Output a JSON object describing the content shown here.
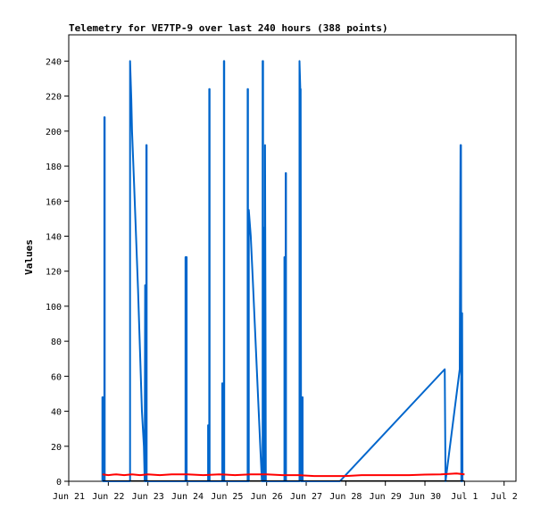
{
  "chart_data": {
    "type": "line",
    "title": "Telemetry for VE7TP-9 over last 240 hours (388 points)",
    "xlabel": "",
    "ylabel": "Values",
    "x_ticks": [
      "Jun 21",
      "Jun 22",
      "Jun 23",
      "Jun 24",
      "Jun 25",
      "Jun 26",
      "Jun 27",
      "Jun 28",
      "Jun 29",
      "Jun 30",
      "Jul 1",
      "Jul 2"
    ],
    "xlim": [
      0,
      11.3
    ],
    "ylim": [
      0,
      255
    ],
    "y_ticks": [
      0,
      20,
      40,
      60,
      80,
      100,
      120,
      140,
      160,
      180,
      200,
      220,
      240
    ],
    "grid": false,
    "series": [
      {
        "color": "#0066cc",
        "points": [
          [
            0.85,
            0
          ],
          [
            0.85,
            48
          ],
          [
            0.87,
            48
          ],
          [
            0.87,
            0
          ],
          [
            0.9,
            0
          ],
          [
            0.9,
            208
          ],
          [
            0.91,
            208
          ],
          [
            0.91,
            0
          ],
          [
            1.55,
            0
          ],
          [
            1.55,
            240
          ],
          [
            1.58,
            218
          ],
          [
            1.6,
            200
          ],
          [
            1.65,
            170
          ],
          [
            1.7,
            140
          ],
          [
            1.75,
            110
          ],
          [
            1.8,
            75
          ],
          [
            1.85,
            40
          ],
          [
            1.9,
            20
          ],
          [
            1.92,
            0
          ],
          [
            1.93,
            112
          ],
          [
            1.93,
            0
          ],
          [
            1.96,
            0
          ],
          [
            1.96,
            192
          ],
          [
            1.97,
            192
          ],
          [
            1.97,
            0
          ],
          [
            2.95,
            0
          ],
          [
            2.95,
            128
          ],
          [
            2.98,
            128
          ],
          [
            2.98,
            0
          ],
          [
            3.52,
            0
          ],
          [
            3.52,
            32
          ],
          [
            3.53,
            0
          ],
          [
            3.55,
            0
          ],
          [
            3.55,
            224
          ],
          [
            3.56,
            224
          ],
          [
            3.56,
            0
          ],
          [
            3.88,
            0
          ],
          [
            3.88,
            56
          ],
          [
            3.89,
            0
          ],
          [
            3.92,
            0
          ],
          [
            3.92,
            240
          ],
          [
            3.93,
            240
          ],
          [
            3.93,
            0
          ],
          [
            4.52,
            0
          ],
          [
            4.52,
            224
          ],
          [
            4.53,
            224
          ],
          [
            4.53,
            0
          ],
          [
            4.55,
            0
          ],
          [
            4.55,
            155
          ],
          [
            4.6,
            140
          ],
          [
            4.65,
            115
          ],
          [
            4.7,
            90
          ],
          [
            4.75,
            65
          ],
          [
            4.8,
            40
          ],
          [
            4.85,
            15
          ],
          [
            4.88,
            0
          ],
          [
            4.9,
            0
          ],
          [
            4.9,
            240
          ],
          [
            4.91,
            240
          ],
          [
            4.91,
            0
          ],
          [
            4.93,
            0
          ],
          [
            4.93,
            145
          ],
          [
            4.94,
            0
          ],
          [
            4.96,
            0
          ],
          [
            4.96,
            192
          ],
          [
            4.97,
            96
          ],
          [
            4.98,
            0
          ],
          [
            5.45,
            0
          ],
          [
            5.45,
            128
          ],
          [
            5.46,
            128
          ],
          [
            5.46,
            0
          ],
          [
            5.48,
            0
          ],
          [
            5.48,
            176
          ],
          [
            5.49,
            176
          ],
          [
            5.49,
            0
          ],
          [
            5.83,
            0
          ],
          [
            5.83,
            240
          ],
          [
            5.85,
            224
          ],
          [
            5.86,
            224
          ],
          [
            5.87,
            0
          ],
          [
            5.9,
            0
          ],
          [
            5.9,
            48
          ],
          [
            5.91,
            48
          ],
          [
            5.91,
            0
          ],
          [
            6.85,
            0
          ],
          [
            9.5,
            64
          ],
          [
            9.52,
            0
          ],
          [
            9.88,
            64
          ],
          [
            9.9,
            192
          ],
          [
            9.91,
            192
          ],
          [
            9.92,
            0
          ],
          [
            9.94,
            0
          ],
          [
            9.94,
            96
          ],
          [
            9.95,
            0
          ]
        ]
      },
      {
        "color": "#ff0000",
        "points": [
          [
            0.85,
            4
          ],
          [
            1.0,
            3.5
          ],
          [
            1.2,
            4
          ],
          [
            1.4,
            3.5
          ],
          [
            1.6,
            4
          ],
          [
            1.8,
            3.5
          ],
          [
            2.0,
            4
          ],
          [
            2.3,
            3.5
          ],
          [
            2.6,
            4
          ],
          [
            3.0,
            4
          ],
          [
            3.4,
            3.5
          ],
          [
            3.8,
            4
          ],
          [
            4.2,
            3.5
          ],
          [
            4.6,
            4
          ],
          [
            5.0,
            4
          ],
          [
            5.4,
            3.5
          ],
          [
            5.8,
            3.5
          ],
          [
            6.2,
            3
          ],
          [
            6.6,
            3
          ],
          [
            7.0,
            3
          ],
          [
            7.4,
            3.5
          ],
          [
            7.8,
            3.5
          ],
          [
            8.2,
            3.5
          ],
          [
            8.6,
            3.5
          ],
          [
            9.0,
            3.8
          ],
          [
            9.4,
            4
          ],
          [
            9.8,
            4.5
          ],
          [
            10.0,
            4
          ]
        ]
      },
      {
        "color": "#000000",
        "points": [
          [
            0.85,
            0.3
          ],
          [
            10.0,
            0.3
          ]
        ]
      }
    ]
  }
}
